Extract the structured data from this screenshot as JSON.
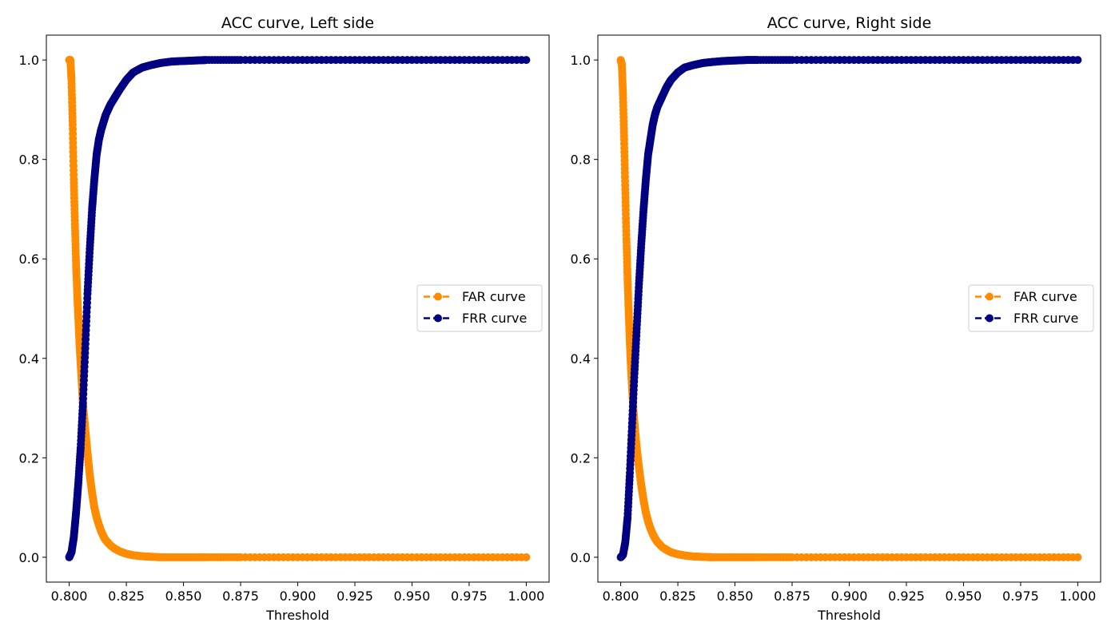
{
  "chart_data": [
    {
      "type": "line",
      "title": "ACC curve, Left side",
      "xlabel": "Threshold",
      "ylabel": "",
      "xlim": [
        0.79,
        1.01
      ],
      "ylim": [
        -0.05,
        1.05
      ],
      "xticks": [
        "0.800",
        "0.825",
        "0.850",
        "0.875",
        "0.900",
        "0.925",
        "0.950",
        "0.975",
        "1.000"
      ],
      "yticks": [
        "0.0",
        "0.2",
        "0.4",
        "0.6",
        "0.8",
        "1.0"
      ],
      "grid": false,
      "legend_position": "right",
      "series": [
        {
          "name": "FAR curve",
          "color": "#ff8c00",
          "linestyle": "dashed",
          "marker": "circle",
          "x": [
            0.8,
            0.8005,
            0.801,
            0.8015,
            0.802,
            0.8025,
            0.803,
            0.8035,
            0.804,
            0.8045,
            0.805,
            0.8055,
            0.806,
            0.807,
            0.808,
            0.809,
            0.81,
            0.811,
            0.812,
            0.813,
            0.814,
            0.815,
            0.816,
            0.818,
            0.82,
            0.822,
            0.825,
            0.828,
            0.832,
            0.836,
            0.84,
            0.85,
            0.86,
            0.875,
            0.9,
            0.925,
            0.95,
            0.975,
            1.0
          ],
          "values": [
            1.0,
            1.0,
            0.96,
            0.87,
            0.76,
            0.67,
            0.59,
            0.53,
            0.48,
            0.43,
            0.39,
            0.35,
            0.31,
            0.26,
            0.21,
            0.165,
            0.13,
            0.1,
            0.08,
            0.065,
            0.052,
            0.042,
            0.034,
            0.024,
            0.017,
            0.012,
            0.007,
            0.004,
            0.002,
            0.001,
            0.0,
            0.0,
            0.0,
            0.0,
            0.0,
            0.0,
            0.0,
            0.0,
            0.0
          ]
        },
        {
          "name": "FRR curve",
          "color": "#000080",
          "linestyle": "dashed",
          "marker": "circle",
          "x": [
            0.8,
            0.801,
            0.802,
            0.803,
            0.804,
            0.805,
            0.806,
            0.807,
            0.808,
            0.809,
            0.81,
            0.811,
            0.812,
            0.813,
            0.814,
            0.815,
            0.816,
            0.818,
            0.82,
            0.822,
            0.825,
            0.828,
            0.832,
            0.836,
            0.84,
            0.845,
            0.85,
            0.855,
            0.86,
            0.875,
            0.9,
            0.925,
            0.95,
            0.975,
            1.0
          ],
          "values": [
            0.0,
            0.01,
            0.04,
            0.09,
            0.15,
            0.22,
            0.31,
            0.42,
            0.53,
            0.62,
            0.7,
            0.76,
            0.81,
            0.84,
            0.86,
            0.875,
            0.89,
            0.91,
            0.925,
            0.94,
            0.96,
            0.975,
            0.985,
            0.99,
            0.994,
            0.997,
            0.998,
            0.999,
            1.0,
            1.0,
            1.0,
            1.0,
            1.0,
            1.0,
            1.0
          ]
        }
      ]
    },
    {
      "type": "line",
      "title": "ACC curve, Right side",
      "xlabel": "Threshold",
      "ylabel": "",
      "xlim": [
        0.79,
        1.01
      ],
      "ylim": [
        -0.05,
        1.05
      ],
      "xticks": [
        "0.800",
        "0.825",
        "0.850",
        "0.875",
        "0.900",
        "0.925",
        "0.950",
        "0.975",
        "1.000"
      ],
      "yticks": [
        "0.0",
        "0.2",
        "0.4",
        "0.6",
        "0.8",
        "1.0"
      ],
      "grid": false,
      "legend_position": "right",
      "series": [
        {
          "name": "FAR curve",
          "color": "#ff8c00",
          "linestyle": "dashed",
          "marker": "circle",
          "x": [
            0.8,
            0.8005,
            0.801,
            0.8015,
            0.802,
            0.8025,
            0.803,
            0.8035,
            0.804,
            0.8045,
            0.805,
            0.8055,
            0.806,
            0.807,
            0.808,
            0.809,
            0.81,
            0.811,
            0.812,
            0.813,
            0.814,
            0.815,
            0.816,
            0.818,
            0.82,
            0.822,
            0.825,
            0.828,
            0.832,
            0.836,
            0.84,
            0.85,
            0.86,
            0.875,
            0.9,
            0.925,
            0.95,
            0.975,
            1.0
          ],
          "values": [
            1.0,
            0.99,
            0.93,
            0.84,
            0.74,
            0.64,
            0.56,
            0.49,
            0.43,
            0.38,
            0.34,
            0.3,
            0.27,
            0.22,
            0.18,
            0.145,
            0.115,
            0.09,
            0.072,
            0.058,
            0.047,
            0.038,
            0.031,
            0.021,
            0.015,
            0.01,
            0.006,
            0.0035,
            0.0015,
            0.0008,
            0.0,
            0.0,
            0.0,
            0.0,
            0.0,
            0.0,
            0.0,
            0.0,
            0.0
          ]
        },
        {
          "name": "FRR curve",
          "color": "#000080",
          "linestyle": "dashed",
          "marker": "circle",
          "x": [
            0.8,
            0.801,
            0.802,
            0.803,
            0.804,
            0.805,
            0.806,
            0.807,
            0.808,
            0.809,
            0.81,
            0.811,
            0.812,
            0.813,
            0.814,
            0.815,
            0.816,
            0.818,
            0.82,
            0.822,
            0.825,
            0.828,
            0.832,
            0.836,
            0.84,
            0.845,
            0.85,
            0.855,
            0.86,
            0.875,
            0.9,
            0.925,
            0.95,
            0.975,
            1.0
          ],
          "values": [
            0.0,
            0.005,
            0.03,
            0.08,
            0.17,
            0.27,
            0.37,
            0.46,
            0.55,
            0.63,
            0.7,
            0.76,
            0.81,
            0.84,
            0.87,
            0.89,
            0.905,
            0.925,
            0.945,
            0.96,
            0.975,
            0.985,
            0.99,
            0.994,
            0.996,
            0.998,
            0.999,
            1.0,
            1.0,
            1.0,
            1.0,
            1.0,
            1.0,
            1.0,
            1.0
          ]
        }
      ]
    }
  ]
}
